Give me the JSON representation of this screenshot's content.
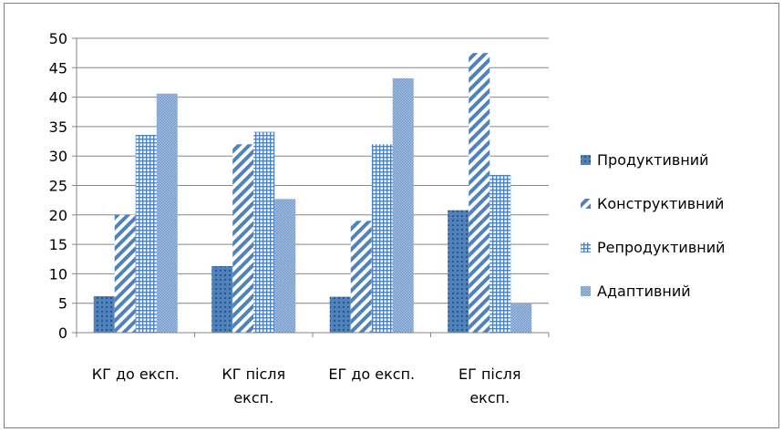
{
  "chart_data": {
    "type": "bar",
    "categories": [
      [
        "КГ до експ."
      ],
      [
        "КГ після",
        "експ."
      ],
      [
        "ЕГ до експ."
      ],
      [
        "ЕГ після",
        "експ."
      ]
    ],
    "series": [
      {
        "name": "Продуктивний",
        "values": [
          6.2,
          11.3,
          6.1,
          20.8
        ],
        "pattern": "dots"
      },
      {
        "name": "Конструктивний",
        "values": [
          20.0,
          32.0,
          19.0,
          47.5
        ],
        "pattern": "diag"
      },
      {
        "name": "Репродуктивний",
        "values": [
          33.6,
          34.1,
          32.0,
          26.8
        ],
        "pattern": "grid"
      },
      {
        "name": "Адаптивний",
        "values": [
          40.6,
          22.7,
          43.2,
          5.0
        ],
        "pattern": "fine"
      }
    ],
    "ylim": [
      0,
      50
    ],
    "yticks": [
      0,
      5,
      10,
      15,
      20,
      25,
      30,
      35,
      40,
      45,
      50
    ],
    "grid": true,
    "legend": "right",
    "colors": {
      "bar": "#4f81bd",
      "grid": "#868686",
      "axis": "#868686"
    }
  }
}
